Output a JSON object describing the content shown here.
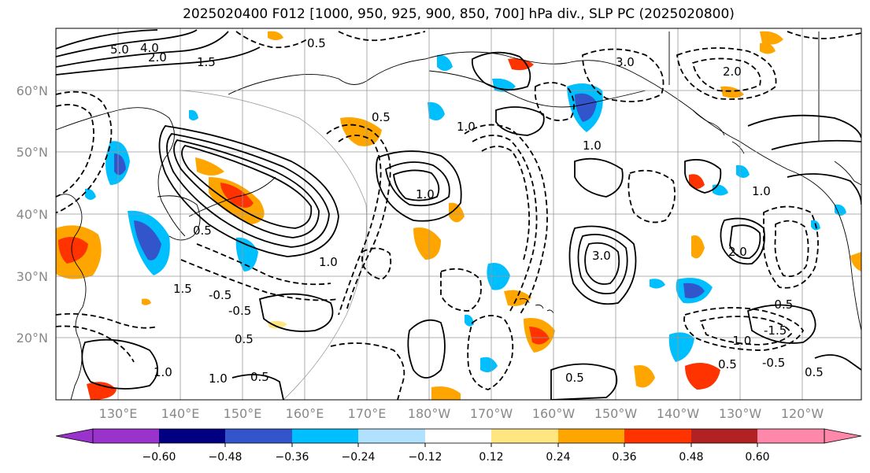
{
  "title": "2025020400 F012 [1000, 950, 925, 900, 850, 700] hPa div., SLP PC (2025020800)",
  "map": {
    "lon_labels": [
      "130°E",
      "140°E",
      "150°E",
      "160°E",
      "170°E",
      "180°W",
      "170°W",
      "160°W",
      "150°W",
      "140°W",
      "130°W",
      "120°W"
    ],
    "lat_labels": [
      "60°N",
      "50°N",
      "40°N",
      "30°N",
      "20°N"
    ],
    "contour_labels": [
      "5.0",
      "4.0",
      "2.0",
      "1.5",
      "0.5",
      "3.0",
      "2.0",
      "1.0",
      "0.5",
      "1.0",
      "-0.5",
      "0.5",
      "1.0",
      "1.5",
      "0.5",
      "-0.5",
      "0.5",
      "1.0",
      "1.0",
      "0.5",
      "3.0",
      "1.0",
      "0.5",
      "-0.5",
      "-1.5",
      "-1.0",
      "-0.5",
      "0.5",
      "2.0",
      "1.0"
    ]
  },
  "colorbar": {
    "tick_labels": [
      "−0.60",
      "−0.48",
      "−0.36",
      "−0.24",
      "−0.12",
      "0.12",
      "0.24",
      "0.36",
      "0.48",
      "0.60"
    ],
    "colors": [
      "#9933cc",
      "#000080",
      "#3355cc",
      "#00bfff",
      "#b0e2ff",
      "#ffffff",
      "#ffe680",
      "#ffa500",
      "#ff3300",
      "#b22222",
      "#ff88aa"
    ]
  }
}
